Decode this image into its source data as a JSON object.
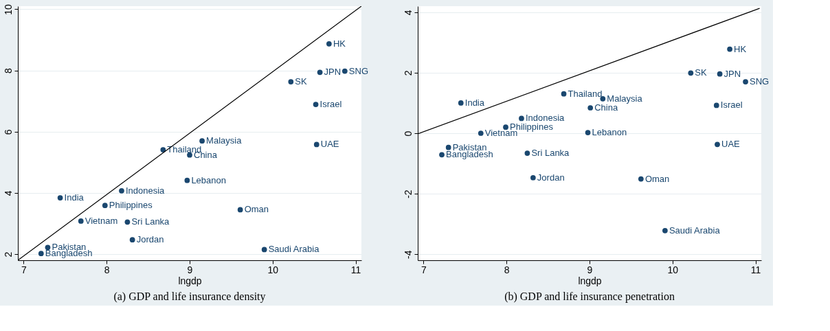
{
  "chart_data": [
    {
      "type": "scatter",
      "title": "(a) GDP and life insurance density",
      "xlabel": "lngdp",
      "xlim": [
        6.93,
        11.07
      ],
      "xticks": [
        7,
        8,
        9,
        10,
        11
      ],
      "ylim": [
        1.8,
        10.1
      ],
      "yticks": [
        2,
        4,
        6,
        8,
        10
      ],
      "grid": "y",
      "series": [
        {
          "marker": "circle",
          "color": "#1a476f",
          "x": [
            10.68,
            10.57,
            10.87,
            10.22,
            10.52,
            10.53,
            9.15,
            8.68,
            9.0,
            8.97,
            8.18,
            7.44,
            7.98,
            9.61,
            7.69,
            8.25,
            8.31,
            9.9,
            7.29,
            7.21
          ],
          "values": [
            8.87,
            7.94,
            7.98,
            7.63,
            6.89,
            5.58,
            5.7,
            5.41,
            5.24,
            4.41,
            4.07,
            3.84,
            3.59,
            3.45,
            3.08,
            3.05,
            2.47,
            2.15,
            2.22,
            2.02
          ],
          "value_labels": [
            "HK",
            "JPN",
            "SNG",
            "SK",
            "Israel",
            "UAE",
            "Malaysia",
            "Thailand",
            "China",
            "Lebanon",
            "Indonesia",
            "India",
            "Philippines",
            "Oman",
            "Vietnam",
            "Sri Lanka",
            "Jordan",
            "Saudi Arabia",
            "Pakistan",
            "Bangladesh"
          ]
        },
        {
          "type": "line",
          "color": "#000000",
          "x": [
            6.93,
            11.07
          ],
          "values": [
            1.8,
            10.1
          ]
        }
      ]
    },
    {
      "type": "scatter",
      "title": "(b) GDP and life insurance penetration",
      "xlabel": "lngdp",
      "xlim": [
        6.93,
        11.07
      ],
      "xticks": [
        7,
        8,
        9,
        10,
        11
      ],
      "ylim": [
        -4.2,
        4.2
      ],
      "yticks": [
        -4,
        -2,
        0,
        2,
        4
      ],
      "grid": "y",
      "series": [
        {
          "marker": "circle",
          "color": "#1a476f",
          "x": [
            10.69,
            10.22,
            10.57,
            10.88,
            8.69,
            9.16,
            7.45,
            9.01,
            10.53,
            8.18,
            7.99,
            7.69,
            8.98,
            10.54,
            7.3,
            7.22,
            8.25,
            8.32,
            9.62,
            9.91
          ],
          "values": [
            2.78,
            1.99,
            1.96,
            1.7,
            1.3,
            1.14,
            1.0,
            0.84,
            0.92,
            0.49,
            0.2,
            0.0,
            0.02,
            -0.37,
            -0.47,
            -0.71,
            -0.66,
            -1.47,
            -1.51,
            -3.22
          ],
          "value_labels": [
            "HK",
            "SK",
            "JPN",
            "SNG",
            "Thailand",
            "Malaysia",
            "India",
            "China",
            "Israel",
            "Indonesia",
            "Philippines",
            "Vietnam",
            "Lebanon",
            "UAE",
            "Pakistan",
            "Bangladesh",
            "Sri Lanka",
            "Jordan",
            "Oman",
            "Saudi Arabia"
          ]
        },
        {
          "type": "line",
          "color": "#000000",
          "x": [
            6.93,
            11.05
          ],
          "values": [
            -0.02,
            4.13
          ]
        }
      ]
    }
  ]
}
